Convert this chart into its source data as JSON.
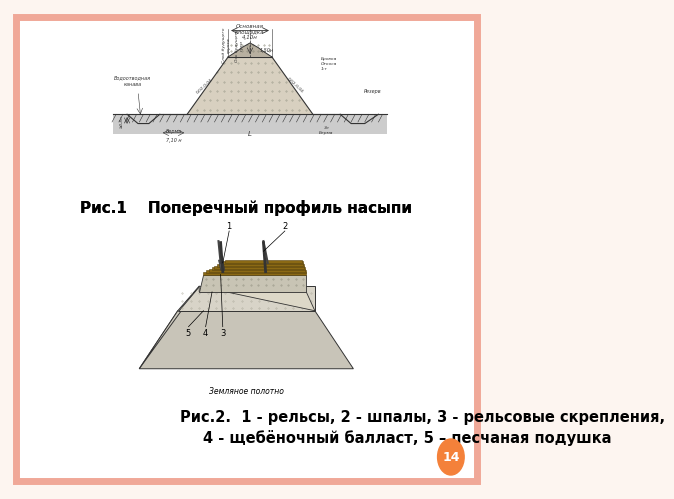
{
  "background_color": "#ffffff",
  "border_color": "#f0a898",
  "page_bg": "#fdf5f0",
  "title1": "Рис.1    Поперечный профиль насыпи",
  "title1_fontsize": 11,
  "caption2_line1": "Рис.2.  1 - рельсы, 2 - шпалы, 3 - рельсовые скрепления,",
  "caption2_line2": "4 - щебёночный балласт, 5 – песчаная подушка",
  "caption2_fontsize": 10.5,
  "badge_color": "#f4813a",
  "badge_text": "14"
}
